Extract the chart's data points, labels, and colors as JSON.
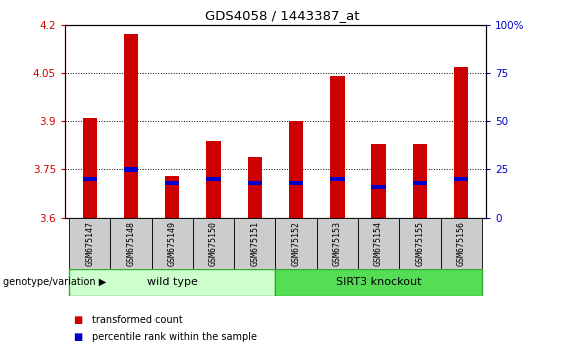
{
  "title": "GDS4058 / 1443387_at",
  "samples": [
    "GSM675147",
    "GSM675148",
    "GSM675149",
    "GSM675150",
    "GSM675151",
    "GSM675152",
    "GSM675153",
    "GSM675154",
    "GSM675155",
    "GSM675156"
  ],
  "transformed_counts": [
    3.91,
    4.17,
    3.73,
    3.84,
    3.79,
    3.9,
    4.04,
    3.83,
    3.83,
    4.07
  ],
  "percentile_ranks": [
    20,
    25,
    18,
    20,
    18,
    18,
    20,
    16,
    18,
    20
  ],
  "base_value": 3.6,
  "ylim_left": [
    3.6,
    4.2
  ],
  "ylim_right": [
    0,
    100
  ],
  "yticks_left": [
    3.6,
    3.75,
    3.9,
    4.05,
    4.2
  ],
  "yticks_right": [
    0,
    25,
    50,
    75,
    100
  ],
  "bar_color": "#cc0000",
  "percentile_color": "#0000cc",
  "bar_width": 0.35,
  "wild_type_label": "wild type",
  "knockout_label": "SIRT3 knockout",
  "wild_type_color": "#ccffcc",
  "knockout_color": "#55dd55",
  "group_border_color": "#33aa33",
  "genotype_label": "genotype/variation",
  "legend_tc": "transformed count",
  "legend_pr": "percentile rank within the sample",
  "tick_color_left": "#cc0000",
  "tick_color_right": "#0000cc",
  "xlabel_area_color": "#cccccc",
  "plot_bg_color": "#ffffff",
  "fig_bg_color": "#ffffff",
  "n_wild": 5,
  "n_knockout": 5
}
